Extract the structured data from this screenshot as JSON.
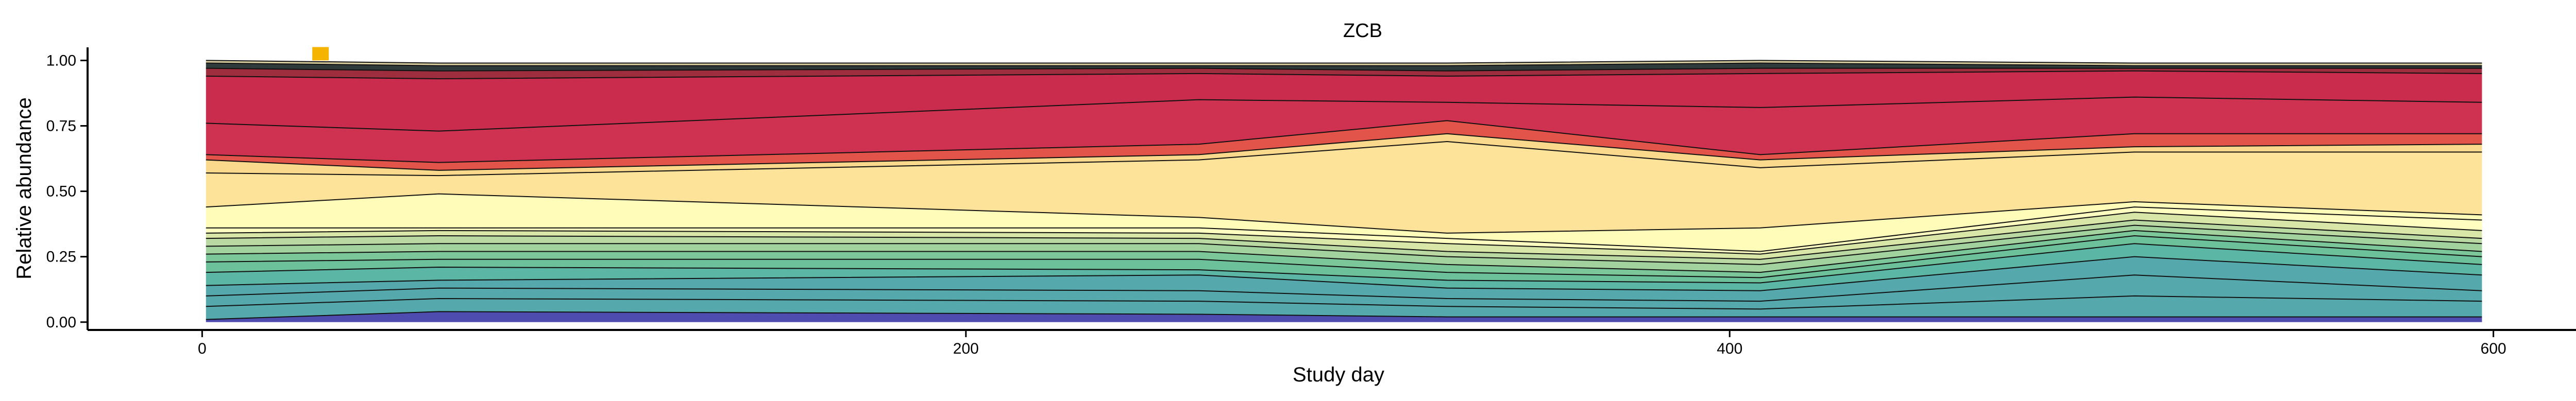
{
  "chart_data": {
    "type": "area",
    "title": "ZCB",
    "xlabel": "Study day",
    "ylabel": "Relative abundance",
    "xlim": [
      -30,
      625
    ],
    "ylim": [
      -0.03,
      1.05
    ],
    "x_ticks": [
      "0",
      "200",
      "400",
      "600"
    ],
    "y_ticks": [
      "0.00",
      "0.25",
      "0.50",
      "0.75",
      "1.00"
    ],
    "grid": false,
    "legend": "none",
    "x": [
      1,
      62,
      261,
      326,
      408,
      506,
      597
    ],
    "stack_boundaries": [
      {
        "color": "#4f4cb0",
        "values": [
          0.01,
          0.04,
          0.03,
          0.02,
          0.02,
          0.02,
          0.02
        ]
      },
      {
        "color": "#55a9ad",
        "values": [
          0.06,
          0.09,
          0.08,
          0.06,
          0.05,
          0.1,
          0.08
        ]
      },
      {
        "color": "#55a9ad",
        "values": [
          0.1,
          0.13,
          0.12,
          0.09,
          0.08,
          0.18,
          0.12
        ]
      },
      {
        "color": "#55a9ad",
        "values": [
          0.14,
          0.16,
          0.18,
          0.13,
          0.12,
          0.25,
          0.18
        ]
      },
      {
        "color": "#5bb6a5",
        "values": [
          0.19,
          0.21,
          0.2,
          0.16,
          0.15,
          0.3,
          0.22
        ]
      },
      {
        "color": "#6cc19b",
        "values": [
          0.23,
          0.24,
          0.24,
          0.19,
          0.17,
          0.33,
          0.25
        ]
      },
      {
        "color": "#7cc79a",
        "values": [
          0.26,
          0.27,
          0.27,
          0.22,
          0.19,
          0.35,
          0.27
        ]
      },
      {
        "color": "#a2d29e",
        "values": [
          0.29,
          0.3,
          0.3,
          0.25,
          0.22,
          0.37,
          0.3
        ]
      },
      {
        "color": "#b9d8a2",
        "values": [
          0.32,
          0.33,
          0.32,
          0.27,
          0.24,
          0.39,
          0.32
        ]
      },
      {
        "color": "#d8e6a8",
        "values": [
          0.34,
          0.35,
          0.34,
          0.3,
          0.26,
          0.42,
          0.35
        ]
      },
      {
        "color": "#fffdbf",
        "values": [
          0.36,
          0.36,
          0.36,
          0.32,
          0.27,
          0.44,
          0.39
        ]
      },
      {
        "color": "#fffbb8",
        "values": [
          0.44,
          0.49,
          0.4,
          0.34,
          0.36,
          0.46,
          0.41
        ]
      },
      {
        "color": "#fde29a",
        "values": [
          0.57,
          0.56,
          0.62,
          0.69,
          0.59,
          0.65,
          0.65
        ]
      },
      {
        "color": "#fbd98c",
        "values": [
          0.62,
          0.58,
          0.64,
          0.72,
          0.62,
          0.67,
          0.68
        ]
      },
      {
        "color": "#e2534a",
        "values": [
          0.64,
          0.61,
          0.68,
          0.77,
          0.64,
          0.72,
          0.72
        ]
      },
      {
        "color": "#cf3250",
        "values": [
          0.76,
          0.73,
          0.85,
          0.84,
          0.82,
          0.86,
          0.84
        ]
      },
      {
        "color": "#c92c4d",
        "values": [
          0.94,
          0.93,
          0.95,
          0.94,
          0.95,
          0.96,
          0.95
        ]
      },
      {
        "color": "#9e2e3e",
        "values": [
          0.97,
          0.96,
          0.97,
          0.96,
          0.97,
          0.97,
          0.97
        ]
      },
      {
        "color": "#2f3a3a",
        "values": [
          0.99,
          0.98,
          0.98,
          0.98,
          0.99,
          0.98,
          0.98
        ]
      },
      {
        "color": "#d9cfa0",
        "values": [
          1.0,
          0.99,
          0.99,
          0.99,
          1.0,
          0.99,
          0.99
        ]
      }
    ],
    "highlight_marker": {
      "x": 31,
      "y": 1.0,
      "color": "#f4b400"
    }
  }
}
